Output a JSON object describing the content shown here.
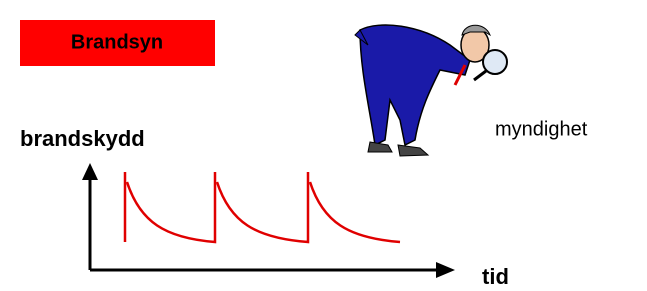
{
  "title": "Brandsyn",
  "y_axis_label": "brandskydd",
  "x_axis_label": "tid",
  "actor_label": "myndighet"
}
